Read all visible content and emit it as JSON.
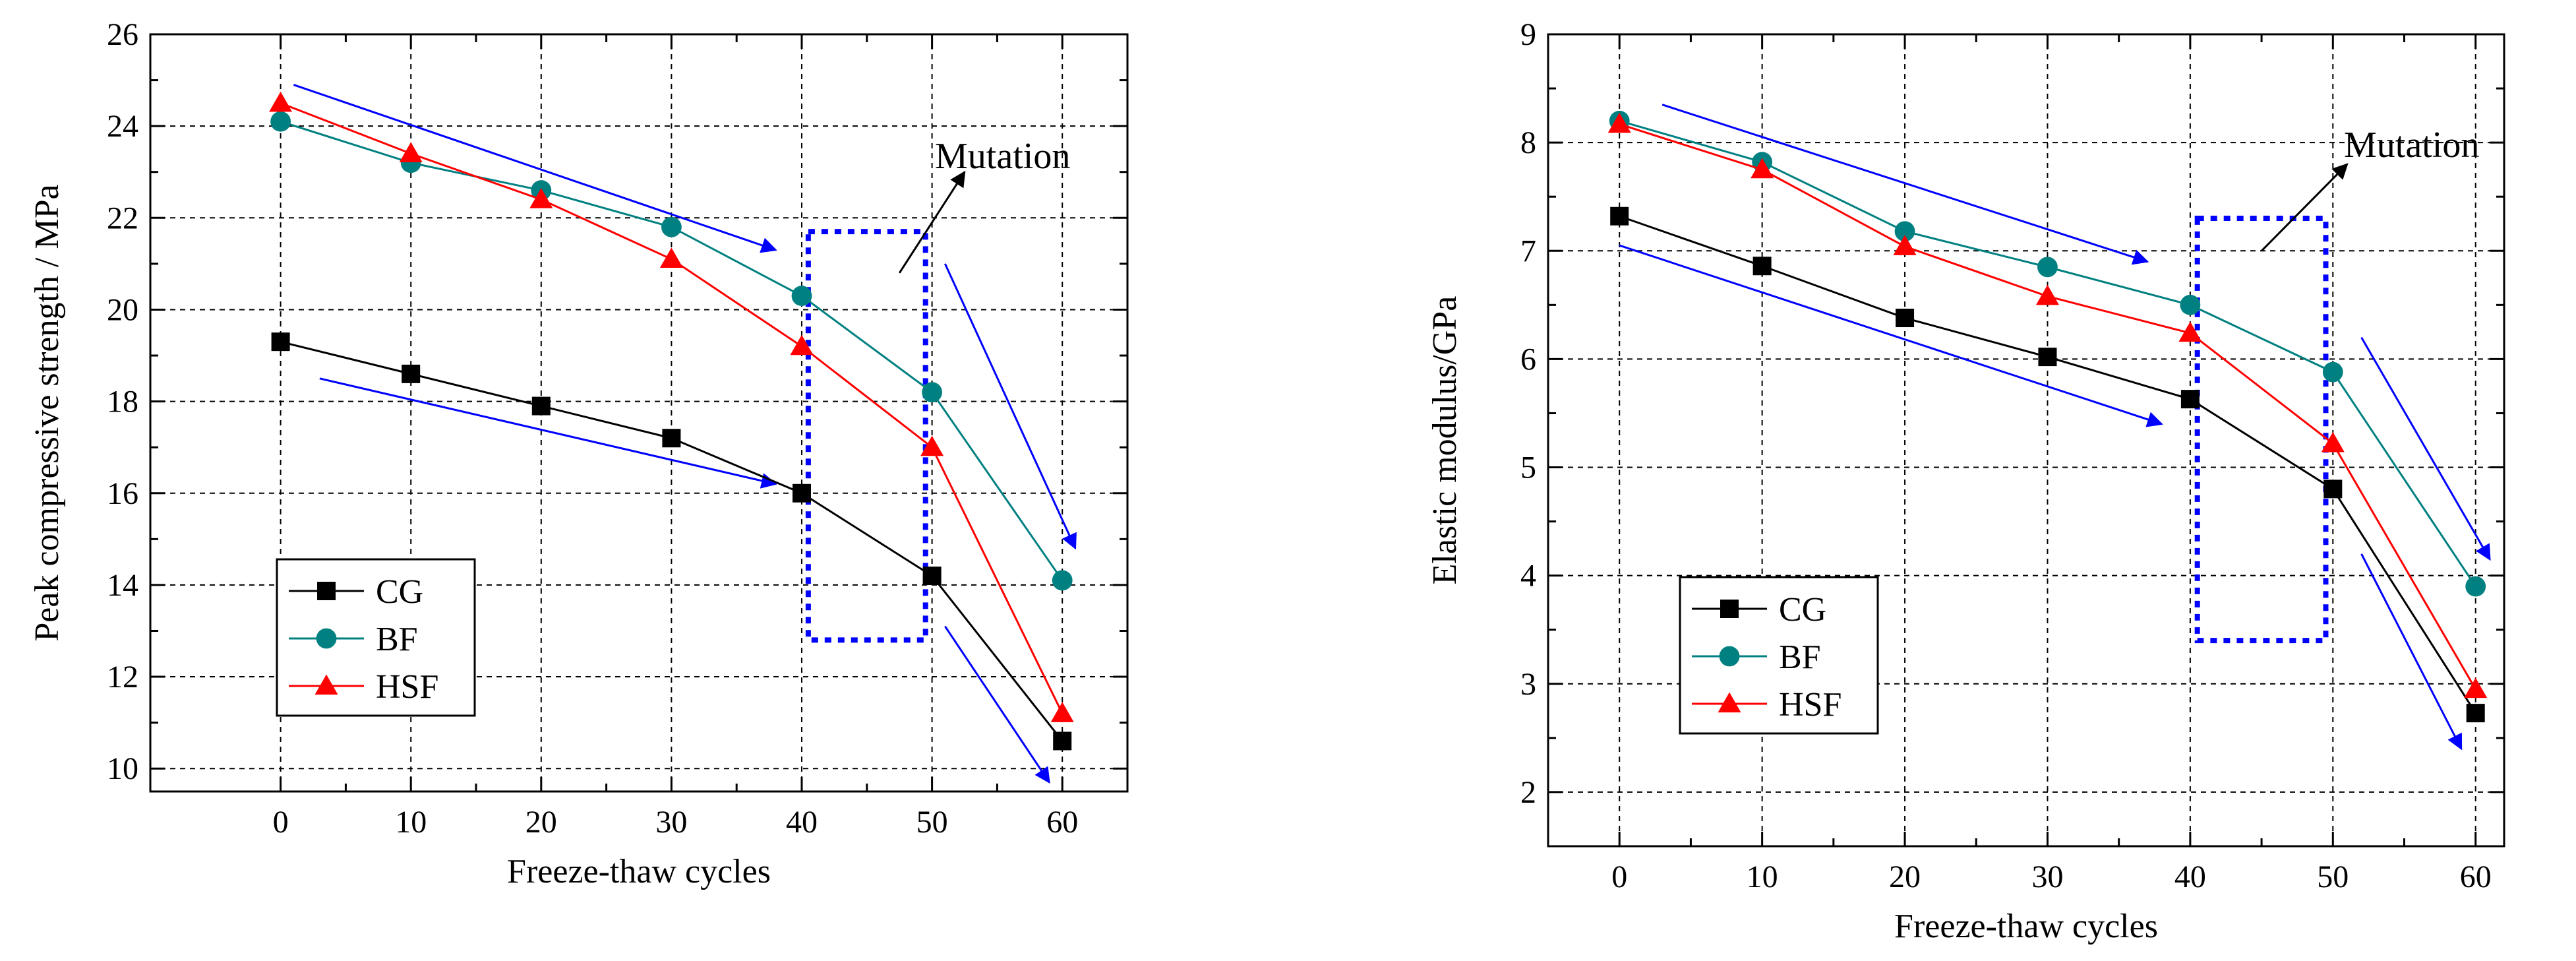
{
  "chart_data": [
    {
      "type": "line",
      "xlabel": "Freeze-thaw cycles",
      "ylabel": "Peak compressive strength / MPa",
      "x": [
        0,
        10,
        20,
        30,
        40,
        50,
        60
      ],
      "xlim": [
        -10,
        65
      ],
      "ylim": [
        9.5,
        26
      ],
      "xticks": [
        0,
        10,
        20,
        30,
        40,
        50,
        60
      ],
      "yticks": [
        10,
        12,
        14,
        16,
        18,
        20,
        22,
        24,
        26
      ],
      "grid": true,
      "legend_position": "lower-left",
      "series": [
        {
          "name": "CG",
          "color": "#000000",
          "marker": "square",
          "values": [
            19.3,
            18.6,
            17.9,
            17.2,
            16.0,
            14.2,
            10.6
          ]
        },
        {
          "name": "BF",
          "color": "#008080",
          "marker": "circle",
          "values": [
            24.1,
            23.2,
            22.6,
            21.8,
            20.3,
            18.2,
            14.1
          ]
        },
        {
          "name": "HSF",
          "color": "#ff0000",
          "marker": "triangle",
          "values": [
            24.5,
            23.4,
            22.4,
            21.1,
            19.2,
            17.0,
            11.2
          ]
        }
      ],
      "annotations": [
        {
          "text": "Mutation",
          "type": "label"
        },
        {
          "type": "dashed-box",
          "color": "#0000ff",
          "x_range": [
            40.5,
            49.5
          ],
          "y_range": [
            12.8,
            21.7
          ]
        },
        {
          "type": "trend-arrow",
          "color": "#0000ff",
          "from": [
            1,
            24.9
          ],
          "to": [
            38,
            21.3
          ]
        },
        {
          "type": "trend-arrow",
          "color": "#0000ff",
          "from": [
            3,
            18.5
          ],
          "to": [
            38,
            16.2
          ]
        },
        {
          "type": "trend-arrow",
          "color": "#0000ff",
          "from": [
            51,
            21.0
          ],
          "to": [
            61,
            14.8
          ]
        },
        {
          "type": "trend-arrow",
          "color": "#0000ff",
          "from": [
            51,
            13.1
          ],
          "to": [
            59,
            9.7
          ]
        },
        {
          "type": "pointer-arrow",
          "color": "#000000",
          "from": [
            47.5,
            20.8
          ],
          "to": [
            52.5,
            23.0
          ]
        }
      ]
    },
    {
      "type": "line",
      "xlabel": "Freeze-thaw cycles",
      "ylabel": "Elastic modulus/GPa",
      "x": [
        0,
        10,
        20,
        30,
        40,
        50,
        60
      ],
      "xlim": [
        -5,
        62
      ],
      "ylim": [
        1.5,
        9
      ],
      "xticks": [
        0,
        10,
        20,
        30,
        40,
        50,
        60
      ],
      "yticks": [
        2,
        3,
        4,
        5,
        6,
        7,
        8,
        9
      ],
      "grid": true,
      "legend_position": "lower-left",
      "series": [
        {
          "name": "CG",
          "color": "#000000",
          "marker": "square",
          "values": [
            7.32,
            6.86,
            6.38,
            6.02,
            5.63,
            4.8,
            2.73
          ]
        },
        {
          "name": "BF",
          "color": "#008080",
          "marker": "circle",
          "values": [
            8.2,
            7.82,
            7.18,
            6.85,
            6.5,
            5.88,
            3.9
          ]
        },
        {
          "name": "HSF",
          "color": "#ff0000",
          "marker": "triangle",
          "values": [
            8.17,
            7.75,
            7.04,
            6.58,
            6.24,
            5.22,
            2.95
          ]
        }
      ],
      "annotations": [
        {
          "text": "Mutation",
          "type": "label"
        },
        {
          "type": "dashed-box",
          "color": "#0000ff",
          "x_range": [
            40.5,
            49.5
          ],
          "y_range": [
            3.4,
            7.3
          ]
        },
        {
          "type": "trend-arrow",
          "color": "#0000ff",
          "from": [
            3,
            8.35
          ],
          "to": [
            37,
            6.9
          ]
        },
        {
          "type": "trend-arrow",
          "color": "#0000ff",
          "from": [
            0,
            7.05
          ],
          "to": [
            38,
            5.4
          ]
        },
        {
          "type": "trend-arrow",
          "color": "#0000ff",
          "from": [
            52,
            6.2
          ],
          "to": [
            61,
            4.15
          ]
        },
        {
          "type": "trend-arrow",
          "color": "#0000ff",
          "from": [
            52,
            4.2
          ],
          "to": [
            59,
            2.4
          ]
        },
        {
          "type": "pointer-arrow",
          "color": "#000000",
          "from": [
            45,
            7.0
          ],
          "to": [
            51,
            7.8
          ]
        }
      ]
    }
  ]
}
